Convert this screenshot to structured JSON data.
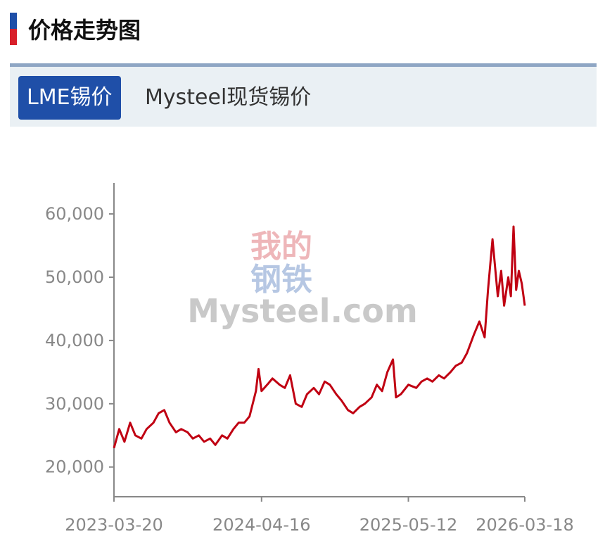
{
  "header": {
    "title": "价格走势图"
  },
  "tabs": [
    {
      "label": "LME锡价",
      "active": true
    },
    {
      "label": "Mysteel现货锡价",
      "active": false
    }
  ],
  "watermark": {
    "line1": "我的",
    "line2": "钢铁",
    "brand": "Mysteel.com"
  },
  "chart_data": {
    "type": "line",
    "x": [
      "2023-03-20",
      "2023-04-03",
      "2023-04-17",
      "2023-05-02",
      "2023-05-16",
      "2023-06-01",
      "2023-06-15",
      "2023-07-03",
      "2023-07-17",
      "2023-08-01",
      "2023-08-15",
      "2023-09-01",
      "2023-09-15",
      "2023-10-02",
      "2023-10-16",
      "2023-11-01",
      "2023-11-15",
      "2023-12-01",
      "2023-12-15",
      "2024-01-02",
      "2024-01-16",
      "2024-02-01",
      "2024-02-15",
      "2024-03-01",
      "2024-03-15",
      "2024-04-01",
      "2024-04-08",
      "2024-04-16",
      "2024-05-01",
      "2024-05-15",
      "2024-06-03",
      "2024-06-17",
      "2024-07-01",
      "2024-07-16",
      "2024-08-01",
      "2024-08-15",
      "2024-09-02",
      "2024-09-16",
      "2024-10-01",
      "2024-10-15",
      "2024-11-01",
      "2024-11-15",
      "2024-12-02",
      "2024-12-16",
      "2025-01-02",
      "2025-01-16",
      "2025-02-03",
      "2025-02-17",
      "2025-03-03",
      "2025-03-17",
      "2025-04-01",
      "2025-04-09",
      "2025-04-22",
      "2025-05-12",
      "2025-06-02",
      "2025-06-16",
      "2025-07-01",
      "2025-07-15",
      "2025-08-01",
      "2025-08-15",
      "2025-09-01",
      "2025-09-15",
      "2025-10-01",
      "2025-10-15",
      "2025-11-03",
      "2025-11-17",
      "2025-12-01",
      "2025-12-10",
      "2025-12-22",
      "2026-01-05",
      "2026-01-14",
      "2026-01-22",
      "2026-02-02",
      "2026-02-09",
      "2026-02-16",
      "2026-02-23",
      "2026-03-02",
      "2026-03-10",
      "2026-03-18"
    ],
    "series": [
      {
        "name": "LME锡价",
        "color": "#c00012",
        "values": [
          23000,
          26000,
          24000,
          27000,
          25000,
          24500,
          26000,
          27000,
          28500,
          29000,
          27000,
          25500,
          26000,
          25500,
          24500,
          25000,
          24000,
          24500,
          23500,
          25000,
          24500,
          26000,
          27000,
          27000,
          28000,
          32000,
          35500,
          32000,
          33000,
          34000,
          33000,
          32500,
          34500,
          30000,
          29500,
          31500,
          32500,
          31500,
          33500,
          33000,
          31500,
          30500,
          29000,
          28500,
          29500,
          30000,
          31000,
          33000,
          32000,
          35000,
          37000,
          31000,
          31500,
          33000,
          32500,
          33500,
          34000,
          33500,
          34500,
          34000,
          35000,
          36000,
          36500,
          38000,
          41000,
          43000,
          40500,
          48000,
          56000,
          47000,
          51000,
          45500,
          50000,
          47000,
          58000,
          48000,
          51000,
          49000,
          45500
        ]
      }
    ],
    "xlim": [
      "2023-03-20",
      "2026-03-18"
    ],
    "xticks": [
      "2023-03-20",
      "2024-04-16",
      "2025-05-12",
      "2026-03-18"
    ],
    "ylim": [
      15300,
      64900
    ],
    "yticks": [
      {
        "value": 20000,
        "label": "20,000"
      },
      {
        "value": 30000,
        "label": "30,000"
      },
      {
        "value": 40000,
        "label": "40,000"
      },
      {
        "value": 50000,
        "label": "50,000"
      },
      {
        "value": 60000,
        "label": "60,000"
      }
    ]
  }
}
